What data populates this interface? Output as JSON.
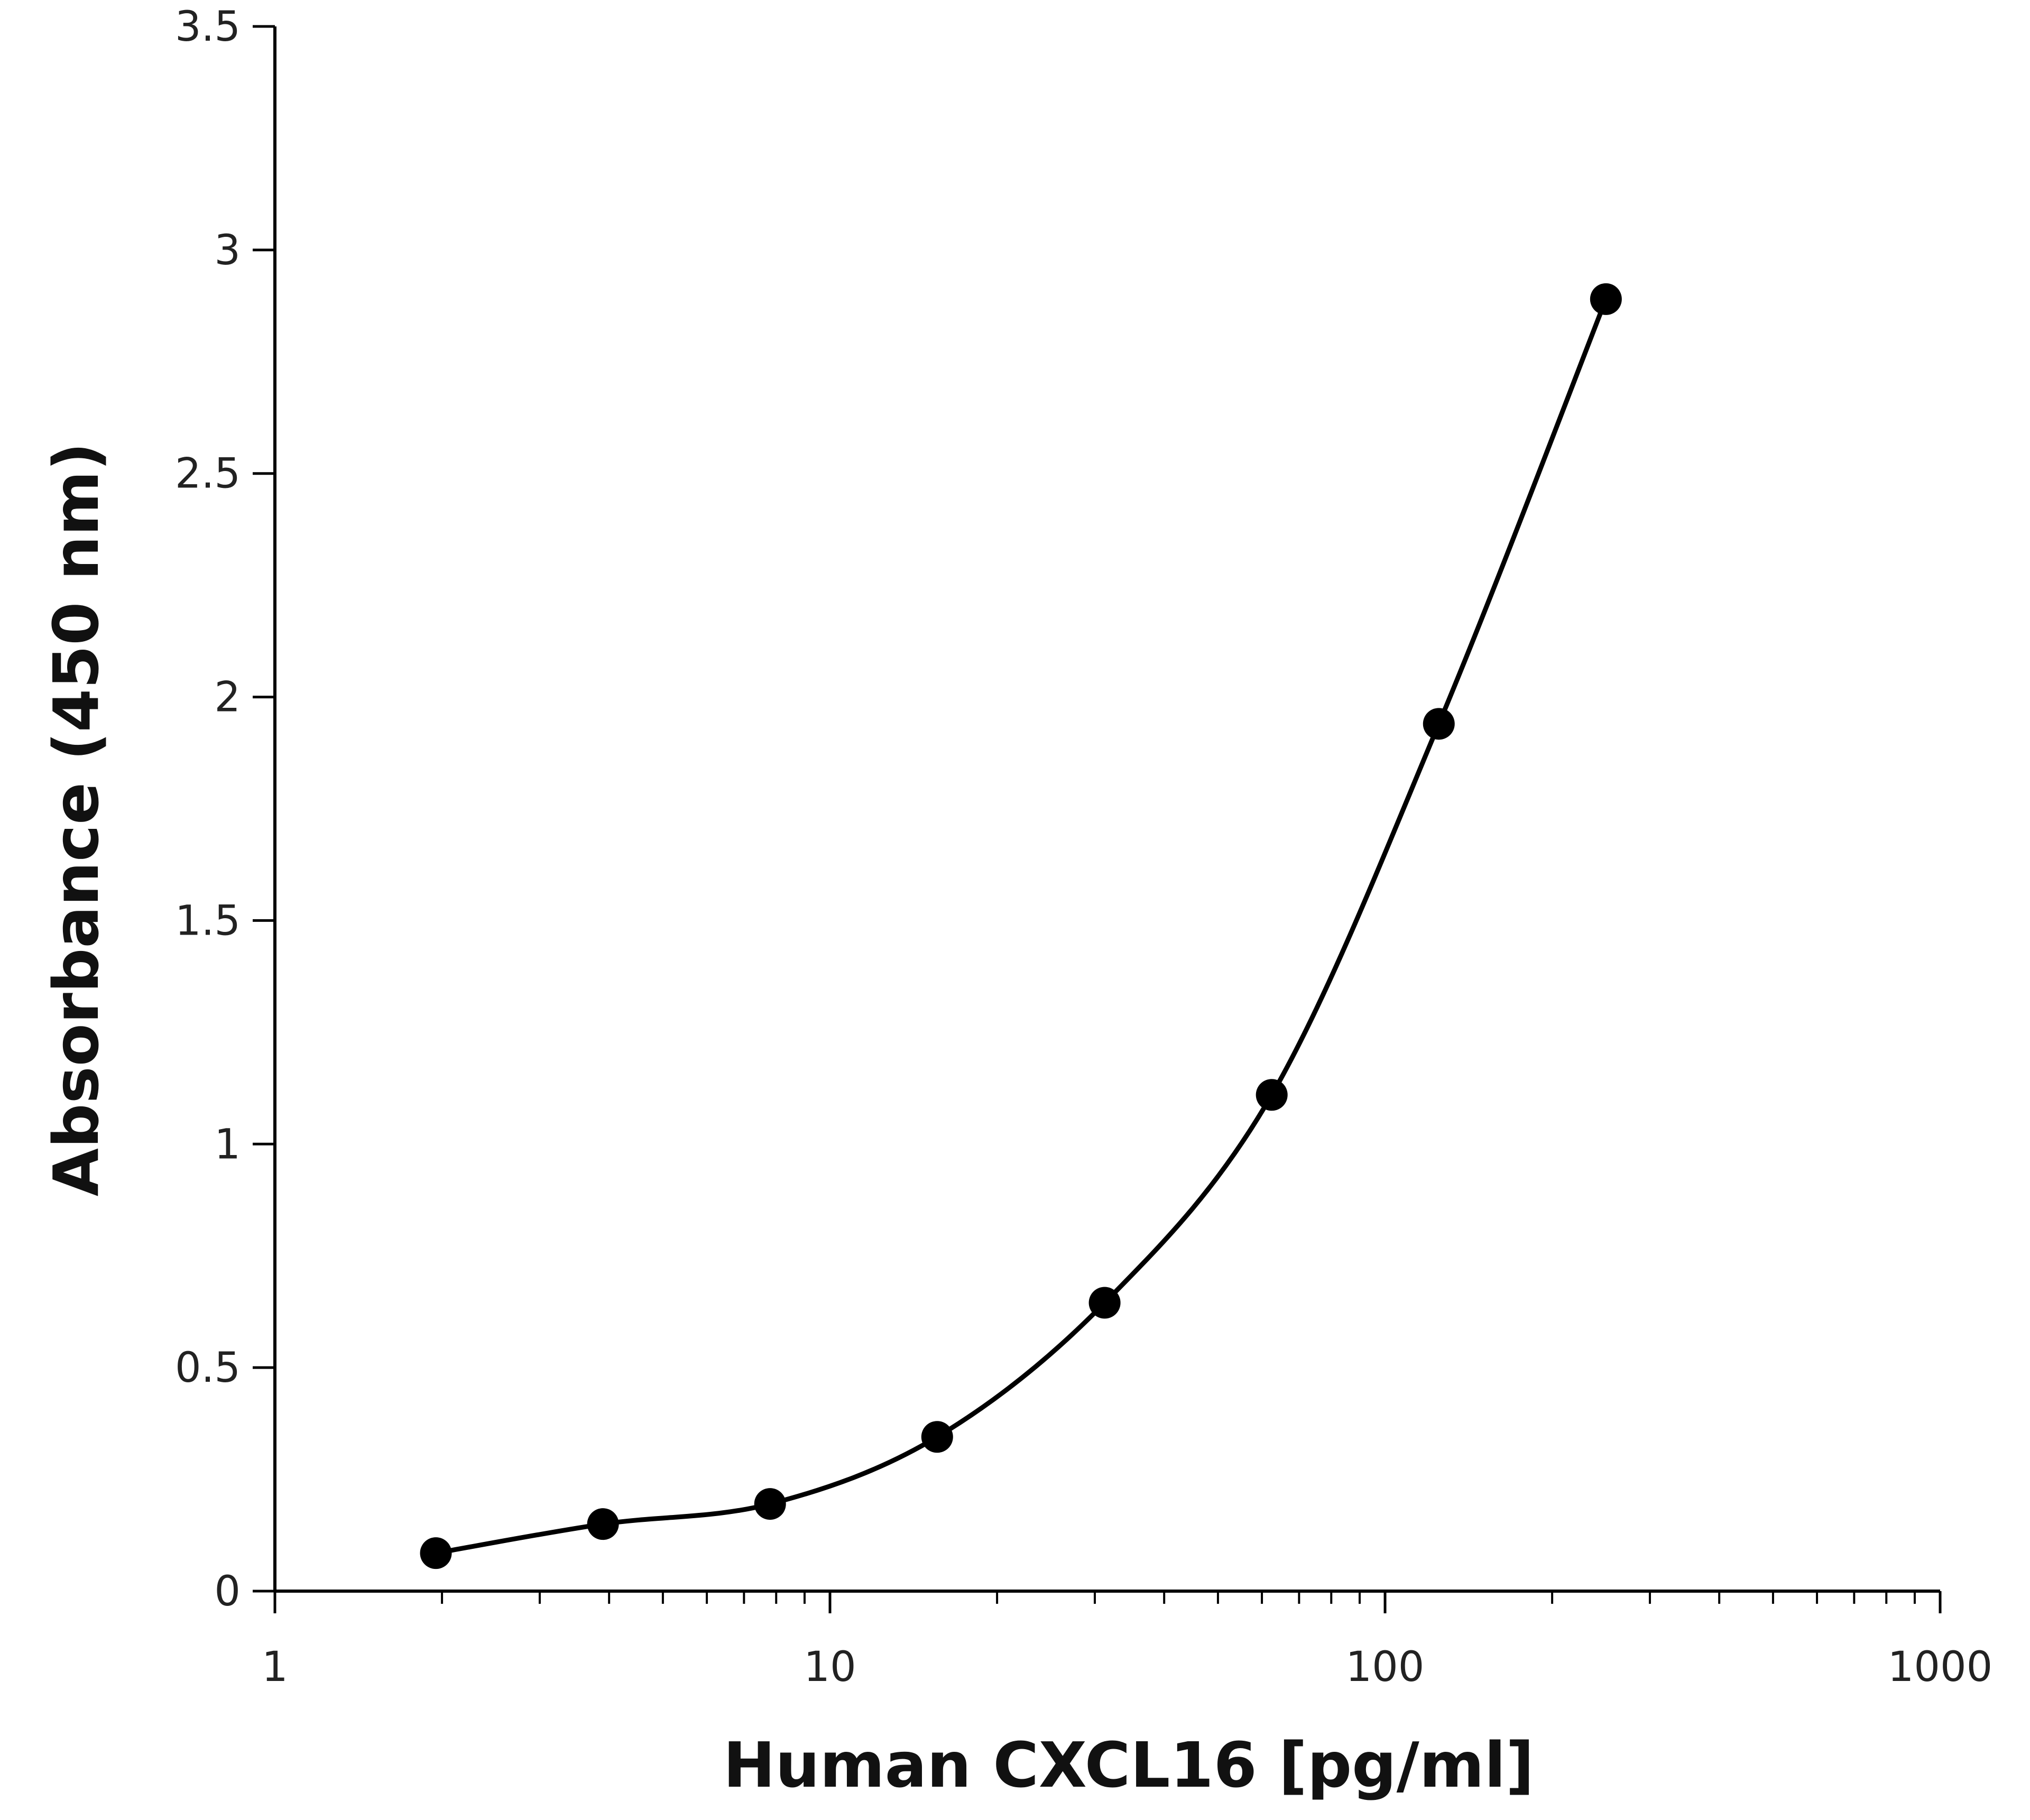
{
  "chart_data": {
    "type": "scatter",
    "title": "",
    "xlabel": "Human CXCL16 [pg/ml]",
    "ylabel": "Absorbance (450 nm)",
    "x_scale": "log",
    "xlim": [
      1,
      1000
    ],
    "ylim": [
      0,
      3.5
    ],
    "grid": false,
    "legend": "none",
    "x_tick_labels": [
      "1",
      "10",
      "100",
      "1000"
    ],
    "y_tick_labels": [
      "0",
      "0.5",
      "1",
      "1.5",
      "2",
      "2.5",
      "3",
      "3.5"
    ],
    "series": [
      {
        "x": [
          1.95,
          3.9,
          7.8,
          15.6,
          31.25,
          62.5,
          125,
          250
        ],
        "y": [
          0.085,
          0.15,
          0.195,
          0.345,
          0.645,
          1.11,
          1.94,
          2.89
        ],
        "color": "#000000",
        "marker": "circle",
        "line": "smooth"
      }
    ]
  }
}
